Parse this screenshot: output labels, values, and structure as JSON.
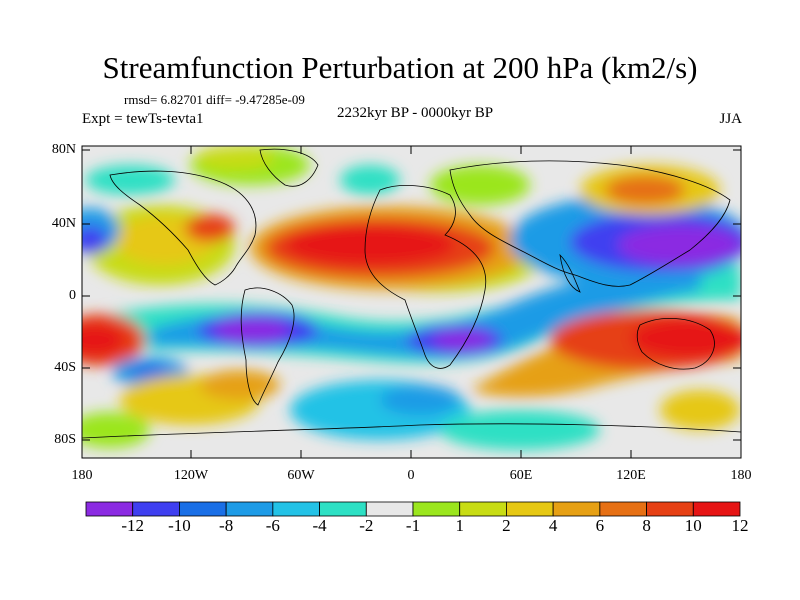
{
  "title": "Streamfunction Perturbation at 200 hPa (km2/s)",
  "stats": "rmsd= 6.82701 diff= -9.47285e-09",
  "experiment": "Expt = tewTs-tevta1",
  "period": "2232kyr BP - 0000kyr BP",
  "season": "JJA",
  "latitude_labels": [
    "80N",
    "40N",
    "0",
    "40S",
    "80S"
  ],
  "longitude_labels": [
    "180",
    "120W",
    "60W",
    "0",
    "60E",
    "120E",
    "180"
  ],
  "colorbar": {
    "colors": [
      "#8b2be2",
      "#3f3ff0",
      "#1a6fe6",
      "#1e9be6",
      "#23c2e6",
      "#2de0c4",
      "#e8e8e8",
      "#9be61e",
      "#c8dc14",
      "#e6c814",
      "#e6a014",
      "#e67014",
      "#e64014",
      "#e61414"
    ],
    "labels": [
      "-12",
      "-10",
      "-8",
      "-6",
      "-4",
      "-2",
      "-1",
      "1",
      "2",
      "4",
      "6",
      "8",
      "10",
      "12"
    ]
  }
}
